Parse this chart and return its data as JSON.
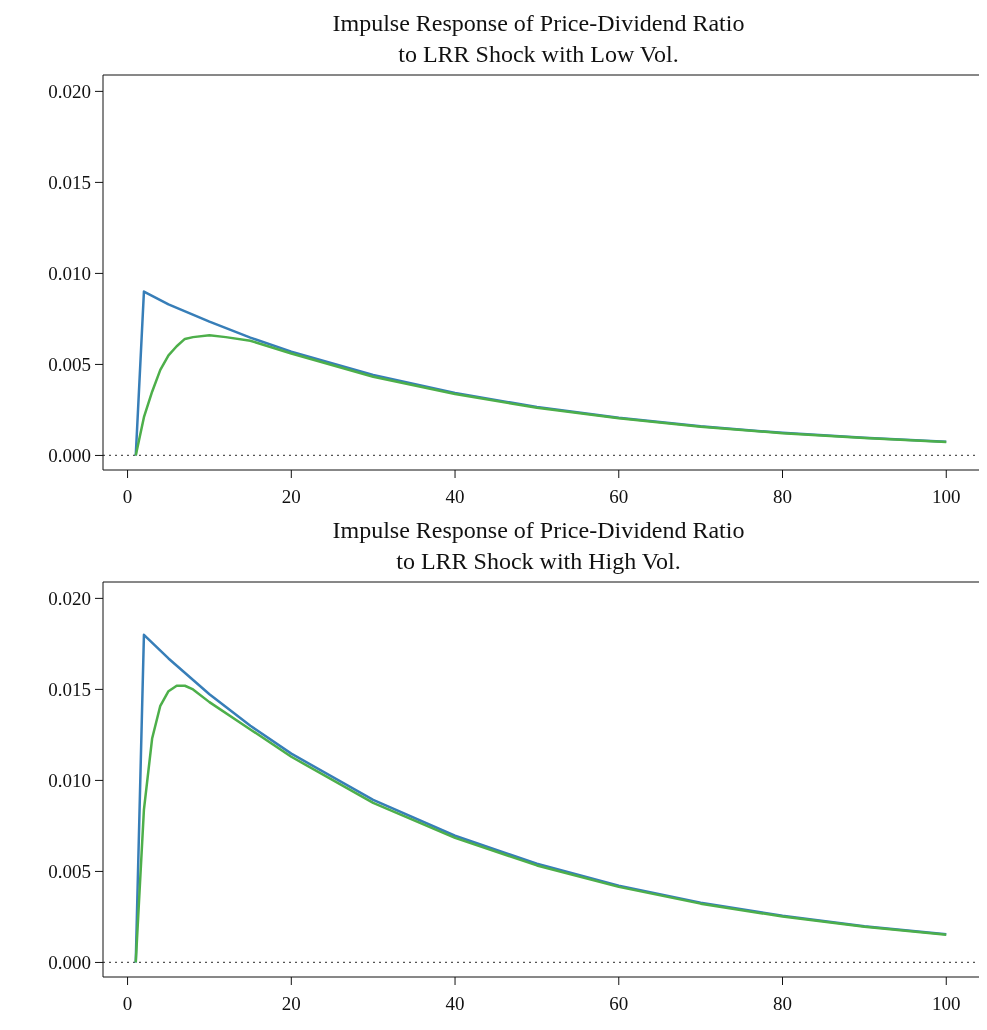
{
  "chart_data": [
    {
      "type": "line",
      "title": "Impulse Response of Price-Dividend Ratio\nto LRR Shock with Low Vol.",
      "xlim": [
        -3,
        104
      ],
      "xticks": [
        0,
        20,
        40,
        60,
        80,
        100
      ],
      "ylim": [
        -0.0008,
        0.0209
      ],
      "yticks": [
        {
          "value": 0,
          "label": "0.000"
        },
        {
          "value": 0.005,
          "label": "0.005"
        },
        {
          "value": 0.01,
          "label": "0.010"
        },
        {
          "value": 0.015,
          "label": "0.015"
        },
        {
          "value": 0.02,
          "label": "0.020"
        }
      ],
      "grid": false,
      "marker": "none",
      "ref_lines": [
        {
          "axis": "y",
          "value": 0,
          "line_style": "dotted",
          "color": "#555555"
        }
      ],
      "series": [
        {
          "color": "#377eb8",
          "x": [
            1,
            2,
            5,
            10,
            15,
            20,
            30,
            40,
            50,
            60,
            70,
            80,
            90,
            100
          ],
          "values": [
            0,
            0.009,
            0.0083,
            0.00735,
            0.00647,
            0.0057,
            0.00442,
            0.00343,
            0.00266,
            0.00207,
            0.0016,
            0.00124,
            0.00097,
            0.00075
          ]
        },
        {
          "color": "#4daf4a",
          "x": [
            1,
            2,
            3,
            4,
            5,
            6,
            7,
            8,
            10,
            12,
            15,
            20,
            30,
            40,
            50,
            60,
            70,
            80,
            90,
            100
          ],
          "values": [
            0,
            0.0021,
            0.0035,
            0.0047,
            0.0055,
            0.006,
            0.0064,
            0.0065,
            0.0066,
            0.0065,
            0.0063,
            0.0056,
            0.00432,
            0.00337,
            0.00262,
            0.00204,
            0.00158,
            0.00122,
            0.00096,
            0.00074
          ]
        }
      ]
    },
    {
      "type": "line",
      "title": "Impulse Response of Price-Dividend Ratio\nto LRR Shock with High Vol.",
      "xlim": [
        -3,
        104
      ],
      "xticks": [
        0,
        20,
        40,
        60,
        80,
        100
      ],
      "ylim": [
        -0.0008,
        0.0209
      ],
      "yticks": [
        {
          "value": 0,
          "label": "0.000"
        },
        {
          "value": 0.005,
          "label": "0.005"
        },
        {
          "value": 0.01,
          "label": "0.010"
        },
        {
          "value": 0.015,
          "label": "0.015"
        },
        {
          "value": 0.02,
          "label": "0.020"
        }
      ],
      "grid": false,
      "marker": "none",
      "ref_lines": [
        {
          "axis": "y",
          "value": 0,
          "line_style": "dotted",
          "color": "#555555"
        }
      ],
      "series": [
        {
          "color": "#377eb8",
          "x": [
            1,
            2,
            5,
            10,
            15,
            20,
            30,
            40,
            50,
            60,
            70,
            80,
            90,
            100
          ],
          "values": [
            0,
            0.018,
            0.0167,
            0.01473,
            0.013,
            0.01147,
            0.00893,
            0.00696,
            0.00542,
            0.00422,
            0.00328,
            0.00256,
            0.00199,
            0.00155
          ]
        },
        {
          "color": "#4daf4a",
          "x": [
            1,
            2,
            3,
            4,
            5,
            6,
            7,
            8,
            10,
            15,
            20,
            30,
            40,
            50,
            60,
            70,
            80,
            90,
            100
          ],
          "values": [
            0,
            0.0084,
            0.0123,
            0.0141,
            0.0149,
            0.0152,
            0.0152,
            0.015,
            0.0143,
            0.0128,
            0.0113,
            0.00877,
            0.00684,
            0.00533,
            0.00415,
            0.00323,
            0.00252,
            0.00196,
            0.00152
          ]
        }
      ]
    }
  ]
}
